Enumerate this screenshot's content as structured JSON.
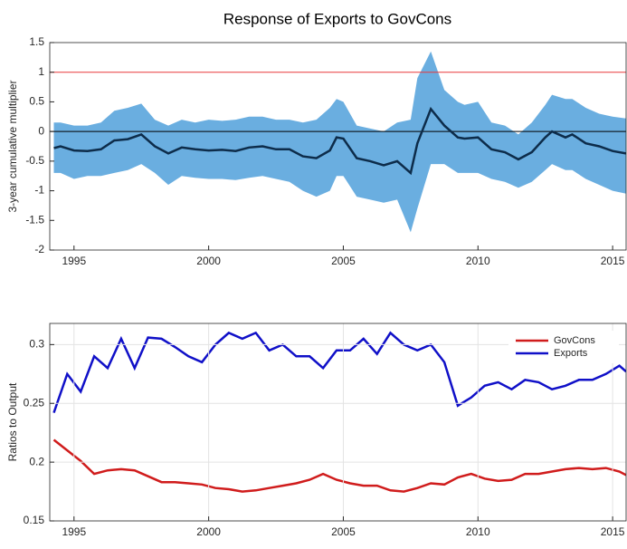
{
  "chart_data": [
    {
      "type": "line",
      "title": "Response of Exports to GovCons",
      "ylabel": "3-year cumulative multiplier",
      "x": [
        1994.25,
        1994.5,
        1995,
        1995.5,
        1996,
        1996.5,
        1997,
        1997.5,
        1998,
        1998.5,
        1999,
        1999.5,
        2000,
        2000.5,
        2001,
        2001.5,
        2002,
        2002.5,
        2003,
        2003.5,
        2004,
        2004.5,
        2004.75,
        2005,
        2005.5,
        2006,
        2006.5,
        2007,
        2007.5,
        2007.75,
        2008.25,
        2008.75,
        2009.25,
        2009.5,
        2010,
        2010.5,
        2011,
        2011.5,
        2012,
        2012.5,
        2012.75,
        2013.25,
        2013.5,
        2014,
        2014.5,
        2015,
        2015.5
      ],
      "values": [
        -0.28,
        -0.25,
        -0.32,
        -0.33,
        -0.3,
        -0.15,
        -0.13,
        -0.05,
        -0.25,
        -0.37,
        -0.27,
        -0.3,
        -0.32,
        -0.31,
        -0.33,
        -0.27,
        -0.25,
        -0.3,
        -0.3,
        -0.42,
        -0.45,
        -0.32,
        -0.1,
        -0.12,
        -0.45,
        -0.5,
        -0.57,
        -0.5,
        -0.7,
        -0.2,
        0.38,
        0.1,
        -0.1,
        -0.12,
        -0.1,
        -0.3,
        -0.35,
        -0.47,
        -0.35,
        -0.1,
        0.0,
        -0.1,
        -0.05,
        -0.2,
        -0.25,
        -0.33,
        -0.37
      ],
      "color": "#0d2c4a",
      "band": {
        "color": "#6aaee0",
        "upper": [
          0.15,
          0.15,
          0.1,
          0.1,
          0.15,
          0.35,
          0.4,
          0.47,
          0.2,
          0.1,
          0.2,
          0.15,
          0.2,
          0.18,
          0.2,
          0.25,
          0.25,
          0.2,
          0.2,
          0.15,
          0.2,
          0.4,
          0.55,
          0.5,
          0.1,
          0.05,
          0,
          0.15,
          0.2,
          0.9,
          1.35,
          0.7,
          0.5,
          0.45,
          0.5,
          0.15,
          0.1,
          -0.05,
          0.15,
          0.45,
          0.62,
          0.55,
          0.55,
          0.4,
          0.3,
          0.25,
          0.22
        ],
        "lower": [
          -0.7,
          -0.7,
          -0.8,
          -0.75,
          -0.75,
          -0.7,
          -0.65,
          -0.55,
          -0.7,
          -0.9,
          -0.75,
          -0.78,
          -0.8,
          -0.8,
          -0.82,
          -0.78,
          -0.75,
          -0.8,
          -0.85,
          -1.0,
          -1.1,
          -1.0,
          -0.75,
          -0.75,
          -1.1,
          -1.15,
          -1.2,
          -1.15,
          -1.7,
          -1.3,
          -0.55,
          -0.55,
          -0.7,
          -0.7,
          -0.7,
          -0.8,
          -0.85,
          -0.95,
          -0.85,
          -0.65,
          -0.55,
          -0.65,
          -0.65,
          -0.8,
          -0.9,
          -1.0,
          -1.05
        ]
      },
      "reference_lines": [
        {
          "value": 1,
          "color": "#e8393a"
        },
        {
          "value": 0,
          "color": "#000000"
        }
      ],
      "xlim": [
        1994.1,
        2015.5
      ],
      "xticks": [
        1995,
        2000,
        2005,
        2010,
        2015
      ],
      "ylim": [
        -2,
        1.5
      ],
      "yticks": [
        -2,
        -1.5,
        -1,
        -0.5,
        0,
        0.5,
        1,
        1.5
      ],
      "grid": false
    },
    {
      "type": "line",
      "ylabel": "Ratios to Output",
      "legend": "north-east",
      "grid": true,
      "x": [
        1994.25,
        1994.75,
        1995.25,
        1995.75,
        1996.25,
        1996.75,
        1997.25,
        1997.75,
        1998.25,
        1998.75,
        1999.25,
        1999.75,
        2000.25,
        2000.75,
        2001.25,
        2001.75,
        2002.25,
        2002.75,
        2003.25,
        2003.75,
        2004.25,
        2004.75,
        2005.25,
        2005.75,
        2006.25,
        2006.75,
        2007.25,
        2007.75,
        2008.25,
        2008.75,
        2009.25,
        2009.75,
        2010.25,
        2010.75,
        2011.25,
        2011.75,
        2012.25,
        2012.75,
        2013.25,
        2013.75,
        2014.25,
        2014.75,
        2015.25,
        2015.5
      ],
      "series": [
        {
          "name": "GovCons",
          "color": "#d01c1c",
          "values": [
            0.219,
            0.21,
            0.201,
            0.19,
            0.193,
            0.194,
            0.193,
            0.188,
            0.183,
            0.183,
            0.182,
            0.181,
            0.178,
            0.177,
            0.175,
            0.176,
            0.178,
            0.18,
            0.182,
            0.185,
            0.19,
            0.185,
            0.182,
            0.18,
            0.18,
            0.176,
            0.175,
            0.178,
            0.182,
            0.181,
            0.187,
            0.19,
            0.186,
            0.184,
            0.185,
            0.19,
            0.19,
            0.192,
            0.194,
            0.195,
            0.194,
            0.195,
            0.192,
            0.189
          ]
        },
        {
          "name": "Exports",
          "color": "#1010c8",
          "values": [
            0.242,
            0.275,
            0.26,
            0.29,
            0.28,
            0.305,
            0.28,
            0.306,
            0.305,
            0.298,
            0.29,
            0.285,
            0.3,
            0.31,
            0.305,
            0.31,
            0.295,
            0.3,
            0.29,
            0.29,
            0.28,
            0.295,
            0.295,
            0.305,
            0.292,
            0.31,
            0.3,
            0.295,
            0.3,
            0.285,
            0.248,
            0.255,
            0.265,
            0.268,
            0.262,
            0.27,
            0.268,
            0.262,
            0.265,
            0.27,
            0.27,
            0.275,
            0.282,
            0.277
          ]
        }
      ],
      "xlim": [
        1994.1,
        2015.5
      ],
      "xticks": [
        1995,
        2000,
        2005,
        2010,
        2015
      ],
      "ylim": [
        0.15,
        0.318
      ],
      "yticks": [
        0.15,
        0.2,
        0.25,
        0.3
      ]
    }
  ]
}
